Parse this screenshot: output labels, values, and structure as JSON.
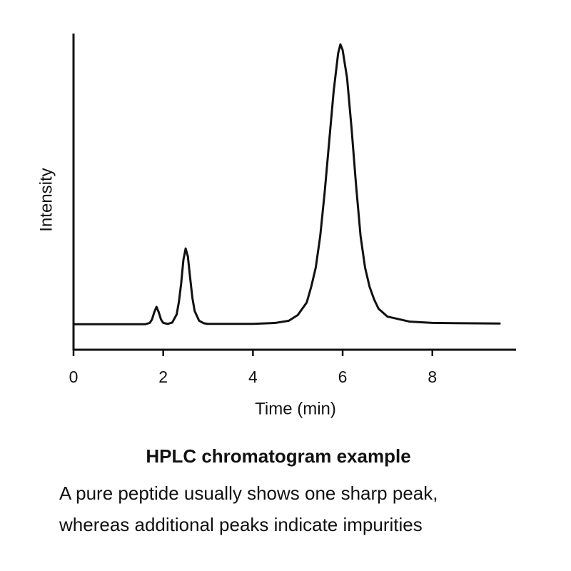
{
  "chart_data": {
    "type": "line",
    "title": "HPLC chromatogram example",
    "caption": [
      "A pure peptide usually shows one sharp peak,",
      "whereas additional peaks indicate impurities"
    ],
    "x_label": "Time (min)",
    "y_label": "Intensity",
    "x": [
      0,
      1.0,
      1.6,
      1.7,
      1.75,
      1.8,
      1.85,
      1.9,
      1.95,
      2.0,
      2.1,
      2.2,
      2.3,
      2.35,
      2.4,
      2.45,
      2.5,
      2.55,
      2.6,
      2.65,
      2.7,
      2.8,
      2.9,
      3.0,
      4.0,
      4.5,
      4.8,
      5.0,
      5.2,
      5.3,
      5.4,
      5.5,
      5.6,
      5.7,
      5.8,
      5.9,
      5.95,
      6.0,
      6.1,
      6.2,
      6.3,
      6.4,
      6.5,
      6.6,
      6.7,
      6.8,
      7.0,
      7.5,
      8.0,
      9.5
    ],
    "series": [
      {
        "color": "#111111",
        "values": [
          8.1,
          8.1,
          8.1,
          8.5,
          9.6,
          11.9,
          13.6,
          11.9,
          9.6,
          8.5,
          8.2,
          8.6,
          11.2,
          15.2,
          21.0,
          28.5,
          32.1,
          29.5,
          22.8,
          16.5,
          12.3,
          9.2,
          8.4,
          8.2,
          8.2,
          8.5,
          9.2,
          11,
          15,
          20,
          26,
          36,
          50,
          66,
          82,
          94,
          96.8,
          95,
          86,
          70,
          52,
          36,
          26,
          20,
          16,
          13,
          10.5,
          8.9,
          8.5,
          8.3
        ]
      }
    ],
    "xlim": [
      0,
      9.85
    ],
    "ylim": [
      0,
      100
    ],
    "xticks": [
      0,
      2,
      4,
      6,
      8
    ],
    "grid": false
  }
}
